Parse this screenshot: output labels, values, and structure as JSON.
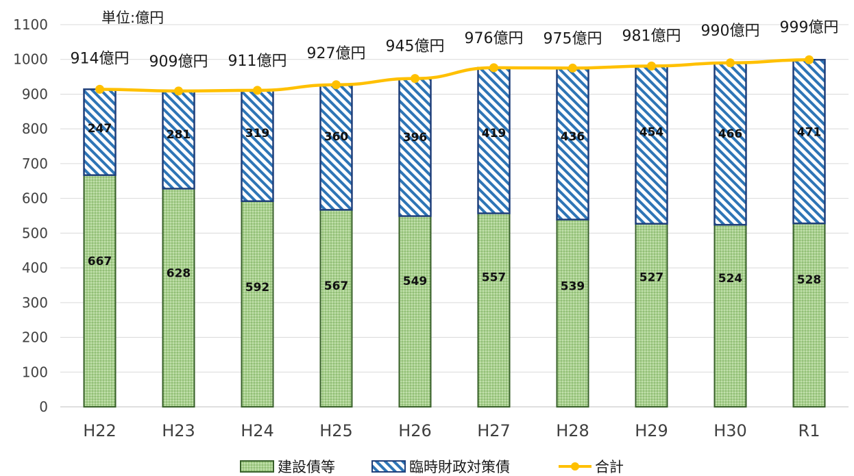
{
  "chart_data": {
    "type": "bar",
    "stacked": true,
    "unit_label": "単位:億円",
    "categories": [
      "H22",
      "H23",
      "H24",
      "H25",
      "H26",
      "H27",
      "H28",
      "H29",
      "H30",
      "R1"
    ],
    "series": [
      {
        "name": "建設債等",
        "type": "bar",
        "values": [
          667,
          628,
          592,
          567,
          549,
          557,
          539,
          527,
          524,
          528
        ],
        "color": "#a9d18e",
        "border": "#38602a",
        "pattern": "dots"
      },
      {
        "name": "臨時財政対策債",
        "type": "bar",
        "values": [
          247,
          281,
          319,
          360,
          396,
          419,
          436,
          454,
          466,
          471
        ],
        "color": "#2e75b6",
        "border": "#1f3f7a",
        "pattern": "diagonal-stripes"
      },
      {
        "name": "合計",
        "type": "line",
        "values": [
          914,
          909,
          911,
          927,
          945,
          976,
          975,
          981,
          990,
          999
        ],
        "color": "#ffc000"
      }
    ],
    "total_labels": [
      "914億円",
      "909億円",
      "911億円",
      "927億円",
      "945億円",
      "976億円",
      "975億円",
      "981億円",
      "990億円",
      "999億円"
    ],
    "ylim": [
      0,
      1100
    ],
    "yticks": [
      0,
      100,
      200,
      300,
      400,
      500,
      600,
      700,
      800,
      900,
      1000,
      1100
    ],
    "grid": true,
    "legend_position": "bottom"
  }
}
